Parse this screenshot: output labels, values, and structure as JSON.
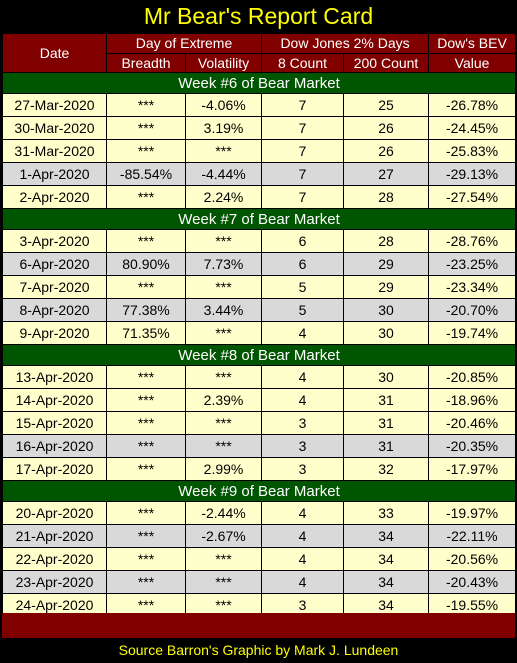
{
  "title": "Mr Bear's Report Card",
  "headers": {
    "date": "Date",
    "day_of_extreme": "Day of Extreme",
    "dow_2pct": "Dow Jones 2% Days",
    "bev": "Dow's BEV",
    "breadth": "Breadth",
    "volatility": "Volatility",
    "count8": "8 Count",
    "count200": "200 Count",
    "value": "Value"
  },
  "weeks": [
    {
      "label": "Week #6 of Bear Market",
      "rows": [
        {
          "date": "27-Mar-2020",
          "breadth": "***",
          "volatility": "-4.06%",
          "c8": "7",
          "c200": "25",
          "bev": "-26.78%",
          "shade": "alt"
        },
        {
          "date": "30-Mar-2020",
          "breadth": "***",
          "volatility": "3.19%",
          "c8": "7",
          "c200": "26",
          "bev": "-24.45%",
          "shade": "alt"
        },
        {
          "date": "31-Mar-2020",
          "breadth": "***",
          "volatility": "***",
          "c8": "7",
          "c200": "26",
          "bev": "-25.83%",
          "shade": "alt"
        },
        {
          "date": "1-Apr-2020",
          "breadth": "-85.54%",
          "volatility": "-4.44%",
          "c8": "7",
          "c200": "27",
          "bev": "-29.13%",
          "shade": "gray"
        },
        {
          "date": "2-Apr-2020",
          "breadth": "***",
          "volatility": "2.24%",
          "c8": "7",
          "c200": "28",
          "bev": "-27.54%",
          "shade": "alt"
        }
      ]
    },
    {
      "label": "Week #7 of Bear Market",
      "rows": [
        {
          "date": "3-Apr-2020",
          "breadth": "***",
          "volatility": "***",
          "c8": "6",
          "c200": "28",
          "bev": "-28.76%",
          "shade": "alt"
        },
        {
          "date": "6-Apr-2020",
          "breadth": "80.90%",
          "volatility": "7.73%",
          "c8": "6",
          "c200": "29",
          "bev": "-23.25%",
          "shade": "gray"
        },
        {
          "date": "7-Apr-2020",
          "breadth": "***",
          "volatility": "***",
          "c8": "5",
          "c200": "29",
          "bev": "-23.34%",
          "shade": "alt"
        },
        {
          "date": "8-Apr-2020",
          "breadth": "77.38%",
          "volatility": "3.44%",
          "c8": "5",
          "c200": "30",
          "bev": "-20.70%",
          "shade": "gray"
        },
        {
          "date": "9-Apr-2020",
          "breadth": "71.35%",
          "volatility": "***",
          "c8": "4",
          "c200": "30",
          "bev": "-19.74%",
          "shade": "alt"
        }
      ]
    },
    {
      "label": "Week #8 of Bear Market",
      "rows": [
        {
          "date": "13-Apr-2020",
          "breadth": "***",
          "volatility": "***",
          "c8": "4",
          "c200": "30",
          "bev": "-20.85%",
          "shade": "alt"
        },
        {
          "date": "14-Apr-2020",
          "breadth": "***",
          "volatility": "2.39%",
          "c8": "4",
          "c200": "31",
          "bev": "-18.96%",
          "shade": "alt"
        },
        {
          "date": "15-Apr-2020",
          "breadth": "***",
          "volatility": "***",
          "c8": "3",
          "c200": "31",
          "bev": "-20.46%",
          "shade": "alt"
        },
        {
          "date": "16-Apr-2020",
          "breadth": "***",
          "volatility": "***",
          "c8": "3",
          "c200": "31",
          "bev": "-20.35%",
          "shade": "gray"
        },
        {
          "date": "17-Apr-2020",
          "breadth": "***",
          "volatility": "2.99%",
          "c8": "3",
          "c200": "32",
          "bev": "-17.97%",
          "shade": "alt"
        }
      ]
    },
    {
      "label": "Week #9 of Bear Market",
      "rows": [
        {
          "date": "20-Apr-2020",
          "breadth": "***",
          "volatility": "-2.44%",
          "c8": "4",
          "c200": "33",
          "bev": "-19.97%",
          "shade": "alt"
        },
        {
          "date": "21-Apr-2020",
          "breadth": "***",
          "volatility": "-2.67%",
          "c8": "4",
          "c200": "34",
          "bev": "-22.11%",
          "shade": "gray"
        },
        {
          "date": "22-Apr-2020",
          "breadth": "***",
          "volatility": "***",
          "c8": "4",
          "c200": "34",
          "bev": "-20.56%",
          "shade": "alt"
        },
        {
          "date": "23-Apr-2020",
          "breadth": "***",
          "volatility": "***",
          "c8": "4",
          "c200": "34",
          "bev": "-20.43%",
          "shade": "gray"
        },
        {
          "date": "24-Apr-2020",
          "breadth": "***",
          "volatility": "***",
          "c8": "3",
          "c200": "34",
          "bev": "-19.55%",
          "shade": "alt"
        }
      ]
    }
  ],
  "source": "Source Barron's  Graphic by Mark J. Lundeen",
  "colors": {
    "header_bg": "#800000",
    "week_bg": "#005500",
    "row_light": "#ffffcc",
    "row_gray": "#d9d9d9",
    "title_text": "#ffff00"
  }
}
